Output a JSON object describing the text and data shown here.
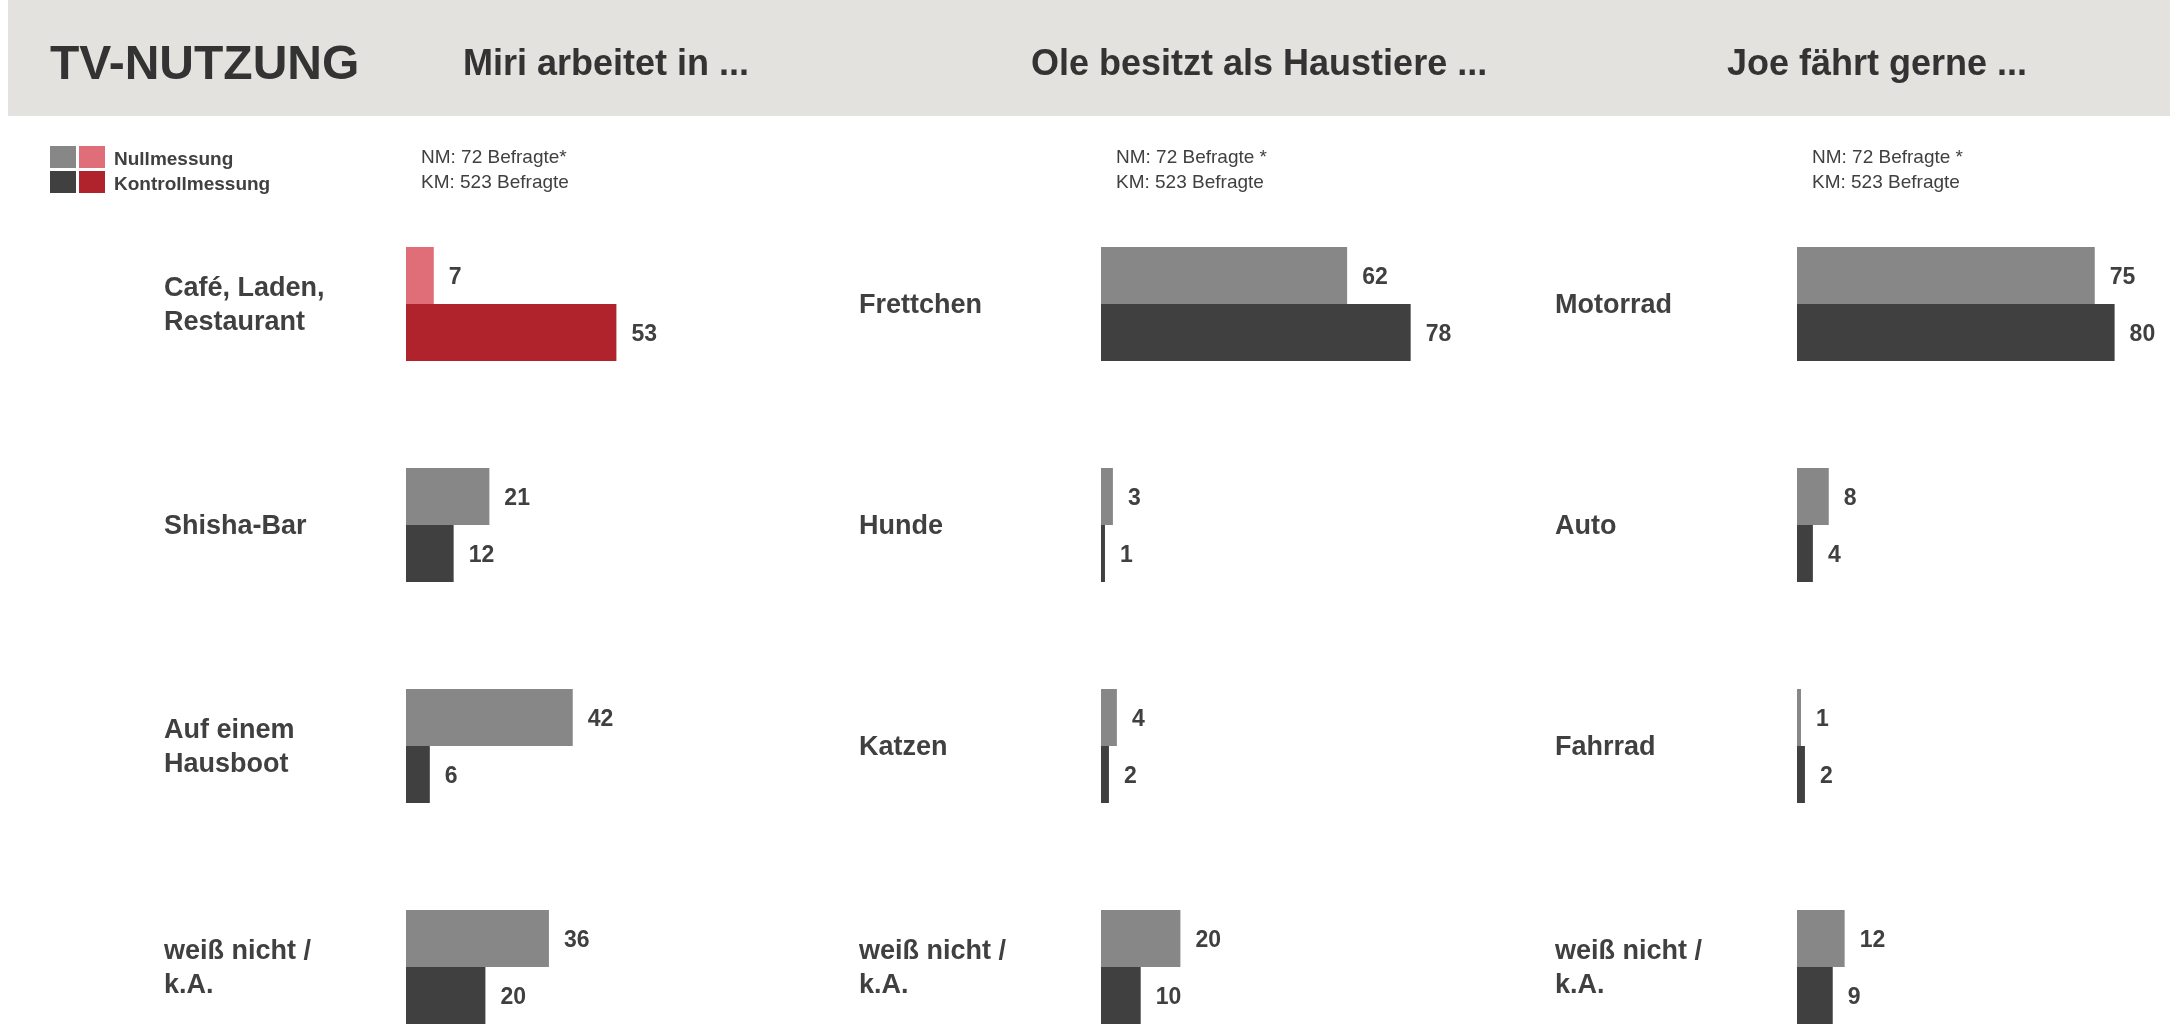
{
  "chart_data": [
    {
      "type": "bar",
      "orientation": "horizontal",
      "title": "Miri arbeitet in ...",
      "annotations": [
        "TV-NUTZUNG",
        "NM: 72 Befragte*",
        "KM: 523 Befragte"
      ],
      "categories": [
        "Café, Laden, Restaurant",
        "Shisha-Bar",
        "Auf einem Hausboot",
        "weiß nicht / k.A."
      ],
      "data_labels": true,
      "legend": "top left",
      "grid": false,
      "series": [
        {
          "name": "Nullmessung",
          "color": "#878787",
          "colors": [
            "#e06e78",
            "#878787",
            "#878787",
            "#878787"
          ],
          "values": [
            7,
            21,
            42,
            36
          ]
        },
        {
          "name": "Kontrollmessung",
          "color": "#404040",
          "colors": [
            "#b0232d",
            "#404040",
            "#404040",
            "#404040"
          ],
          "values": [
            53,
            12,
            6,
            20
          ]
        }
      ]
    },
    {
      "type": "bar",
      "orientation": "horizontal",
      "title": "Ole besitzt als Haustiere ...",
      "annotations": [
        "NM: 72 Befragte *",
        "KM: 523 Befragte"
      ],
      "categories": [
        "Frettchen",
        "Hunde",
        "Katzen",
        "weiß nicht / k.A."
      ],
      "data_labels": true,
      "legend": false,
      "grid": false,
      "series": [
        {
          "color": "#878787",
          "values": [
            62,
            3,
            4,
            20
          ]
        },
        {
          "color": "#404040",
          "values": [
            78,
            1,
            2,
            10
          ]
        }
      ]
    },
    {
      "type": "bar",
      "orientation": "horizontal",
      "title": "Joe fährt gerne ...",
      "annotations": [
        "NM: 72 Befragte *",
        "KM: 523 Befragte"
      ],
      "categories": [
        "Motorrad",
        "Auto",
        "Fahrrad",
        "weiß nicht / k.A."
      ],
      "data_labels": true,
      "legend": false,
      "grid": false,
      "series": [
        {
          "color": "#878787",
          "values": [
            75,
            8,
            1,
            12
          ]
        },
        {
          "color": "#404040",
          "values": [
            80,
            4,
            2,
            9
          ]
        }
      ]
    }
  ]
}
